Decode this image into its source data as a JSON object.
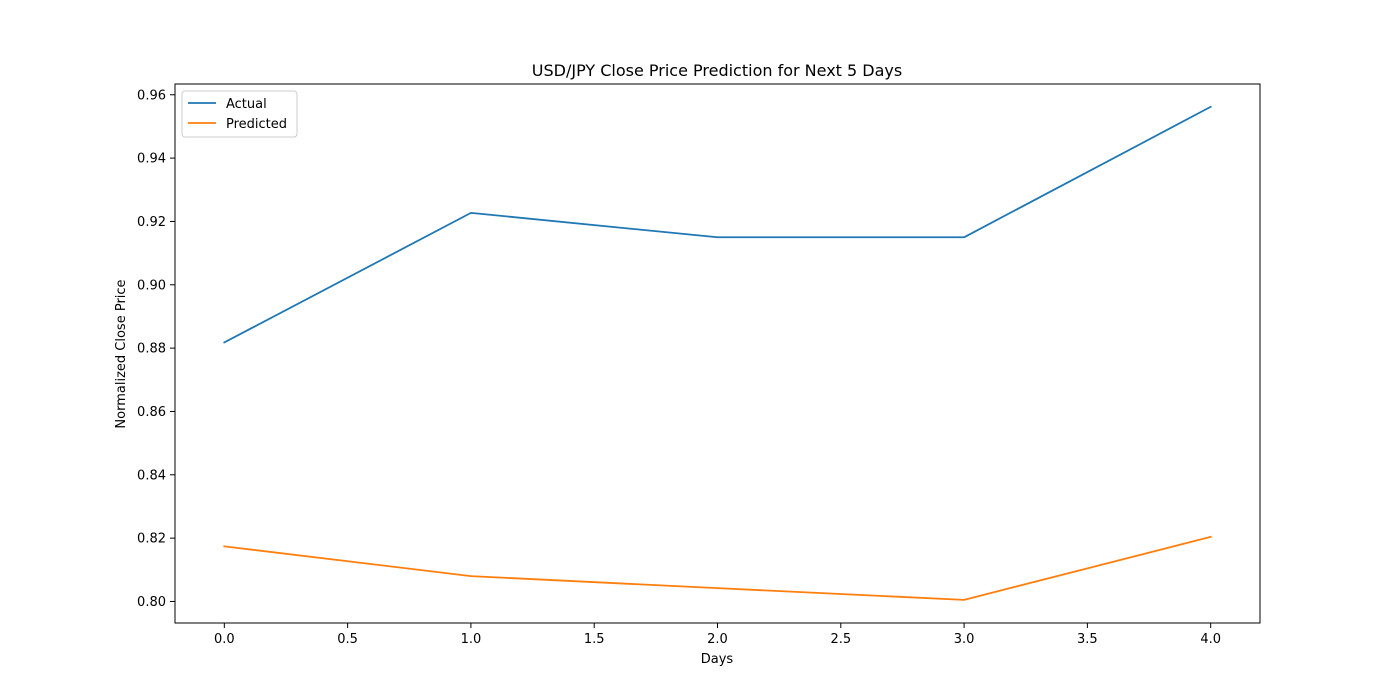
{
  "chart_data": {
    "type": "line",
    "title": "USD/JPY Close Price Prediction for Next 5 Days",
    "xlabel": "Days",
    "ylabel": "Normalized Close Price",
    "x": [
      0,
      1,
      2,
      3,
      4
    ],
    "series": [
      {
        "name": "Actual",
        "color": "#1f77b4",
        "values": [
          0.8818,
          0.9227,
          0.915,
          0.915,
          0.9562
        ]
      },
      {
        "name": "Predicted",
        "color": "#ff7f0e",
        "values": [
          0.8174,
          0.808,
          0.8042,
          0.8005,
          0.8204
        ]
      }
    ],
    "xlim": [
      -0.2,
      4.2
    ],
    "ylim": [
      0.7932,
      0.9634
    ],
    "xticks": [
      "0.0",
      "0.5",
      "1.0",
      "1.5",
      "2.0",
      "2.5",
      "3.0",
      "3.5",
      "4.0"
    ],
    "yticks": [
      "0.80",
      "0.82",
      "0.84",
      "0.86",
      "0.88",
      "0.90",
      "0.92",
      "0.94",
      "0.96"
    ],
    "grid": false,
    "legend": "top-left"
  }
}
